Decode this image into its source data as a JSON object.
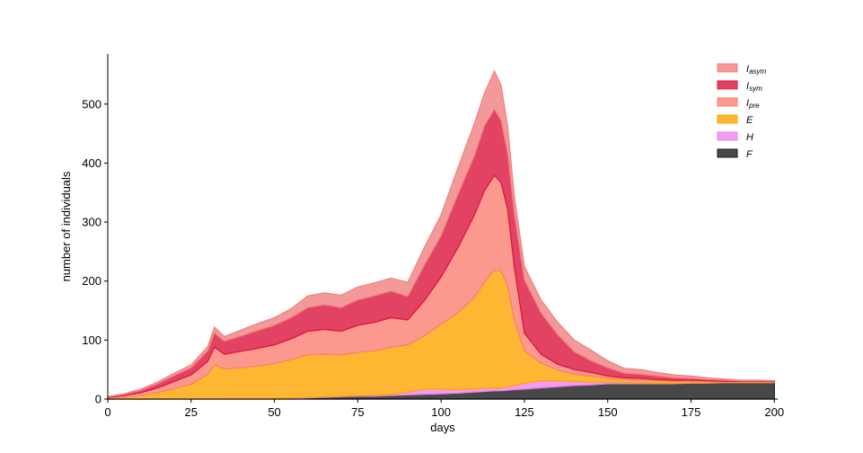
{
  "chart_data": {
    "type": "area",
    "stacked": true,
    "title": "",
    "xlabel": "days",
    "ylabel": "number of individuals",
    "xlim": [
      0,
      201
    ],
    "ylim": [
      0,
      585
    ],
    "xticks": [
      0,
      25,
      50,
      75,
      100,
      125,
      150,
      175,
      200
    ],
    "yticks": [
      0,
      100,
      200,
      300,
      400,
      500
    ],
    "grid": false,
    "legend_position": "top-right",
    "x": [
      0,
      5,
      10,
      15,
      20,
      25,
      30,
      32,
      35,
      40,
      45,
      50,
      55,
      60,
      65,
      70,
      75,
      80,
      85,
      90,
      95,
      100,
      105,
      110,
      113,
      116,
      118,
      120,
      122,
      125,
      130,
      135,
      140,
      145,
      150,
      155,
      160,
      165,
      170,
      175,
      180,
      185,
      190,
      195,
      200
    ],
    "series": [
      {
        "name": "F",
        "label_main": "F",
        "label_sub": "",
        "color": "#1a1a1a",
        "values": [
          0,
          0,
          0,
          0,
          0,
          0,
          0,
          0,
          0,
          0,
          0,
          0,
          1,
          2,
          3,
          4,
          5,
          5,
          6,
          7,
          8,
          9,
          10,
          12,
          13,
          14,
          14,
          15,
          16,
          17,
          19,
          21,
          23,
          24,
          26,
          26,
          26,
          26,
          26,
          27,
          27,
          28,
          28,
          28,
          28
        ]
      },
      {
        "name": "H",
        "label_main": "H",
        "label_sub": "",
        "color": "#ee82ee",
        "values": [
          0,
          0,
          0,
          0,
          0,
          0,
          0,
          0,
          1,
          1,
          1,
          1,
          1,
          1,
          1,
          1,
          1,
          2,
          2,
          5,
          9,
          8,
          6,
          5,
          5,
          5,
          5,
          6,
          7,
          10,
          12,
          10,
          7,
          5,
          3,
          2,
          2,
          1,
          1,
          1,
          1,
          0,
          0,
          0,
          0
        ]
      },
      {
        "name": "E",
        "label_main": "E",
        "label_sub": "",
        "color": "#ffa500",
        "values": [
          2,
          3,
          6,
          11,
          18,
          25,
          42,
          58,
          50,
          52,
          55,
          59,
          65,
          72,
          72,
          70,
          73,
          75,
          80,
          80,
          90,
          110,
          130,
          155,
          180,
          200,
          198,
          170,
          110,
          55,
          30,
          18,
          12,
          10,
          6,
          5,
          4,
          4,
          3,
          2,
          2,
          1,
          1,
          1,
          1
        ]
      },
      {
        "name": "I_pre",
        "label_main": "I",
        "label_sub": "pre",
        "color": "#fa8072",
        "values": [
          1,
          3,
          5,
          8,
          12,
          16,
          22,
          30,
          25,
          28,
          30,
          32,
          35,
          40,
          42,
          40,
          46,
          48,
          50,
          42,
          60,
          80,
          110,
          140,
          155,
          160,
          150,
          130,
          90,
          30,
          15,
          10,
          8,
          6,
          4,
          3,
          3,
          2,
          2,
          2,
          1,
          1,
          1,
          1,
          1
        ]
      },
      {
        "name": "I_sym",
        "label_main": "I",
        "label_sub": "sym",
        "color": "#dc143c",
        "values": [
          1,
          2,
          4,
          7,
          10,
          12,
          18,
          24,
          22,
          26,
          30,
          33,
          36,
          40,
          42,
          40,
          43,
          45,
          45,
          40,
          60,
          70,
          90,
          100,
          110,
          112,
          105,
          95,
          90,
          90,
          70,
          50,
          30,
          20,
          14,
          8,
          7,
          6,
          4,
          3,
          2,
          2,
          1,
          1,
          1
        ]
      },
      {
        "name": "I_asym",
        "label_main": "I",
        "label_sub": "asym",
        "color": "#f08080",
        "values": [
          0,
          1,
          2,
          3,
          4,
          5,
          7,
          10,
          8,
          10,
          12,
          13,
          15,
          20,
          20,
          21,
          22,
          22,
          22,
          24,
          30,
          35,
          45,
          55,
          55,
          65,
          60,
          45,
          30,
          23,
          22,
          21,
          20,
          18,
          12,
          8,
          8,
          6,
          5,
          4,
          3,
          2,
          1,
          1,
          0
        ]
      }
    ]
  }
}
